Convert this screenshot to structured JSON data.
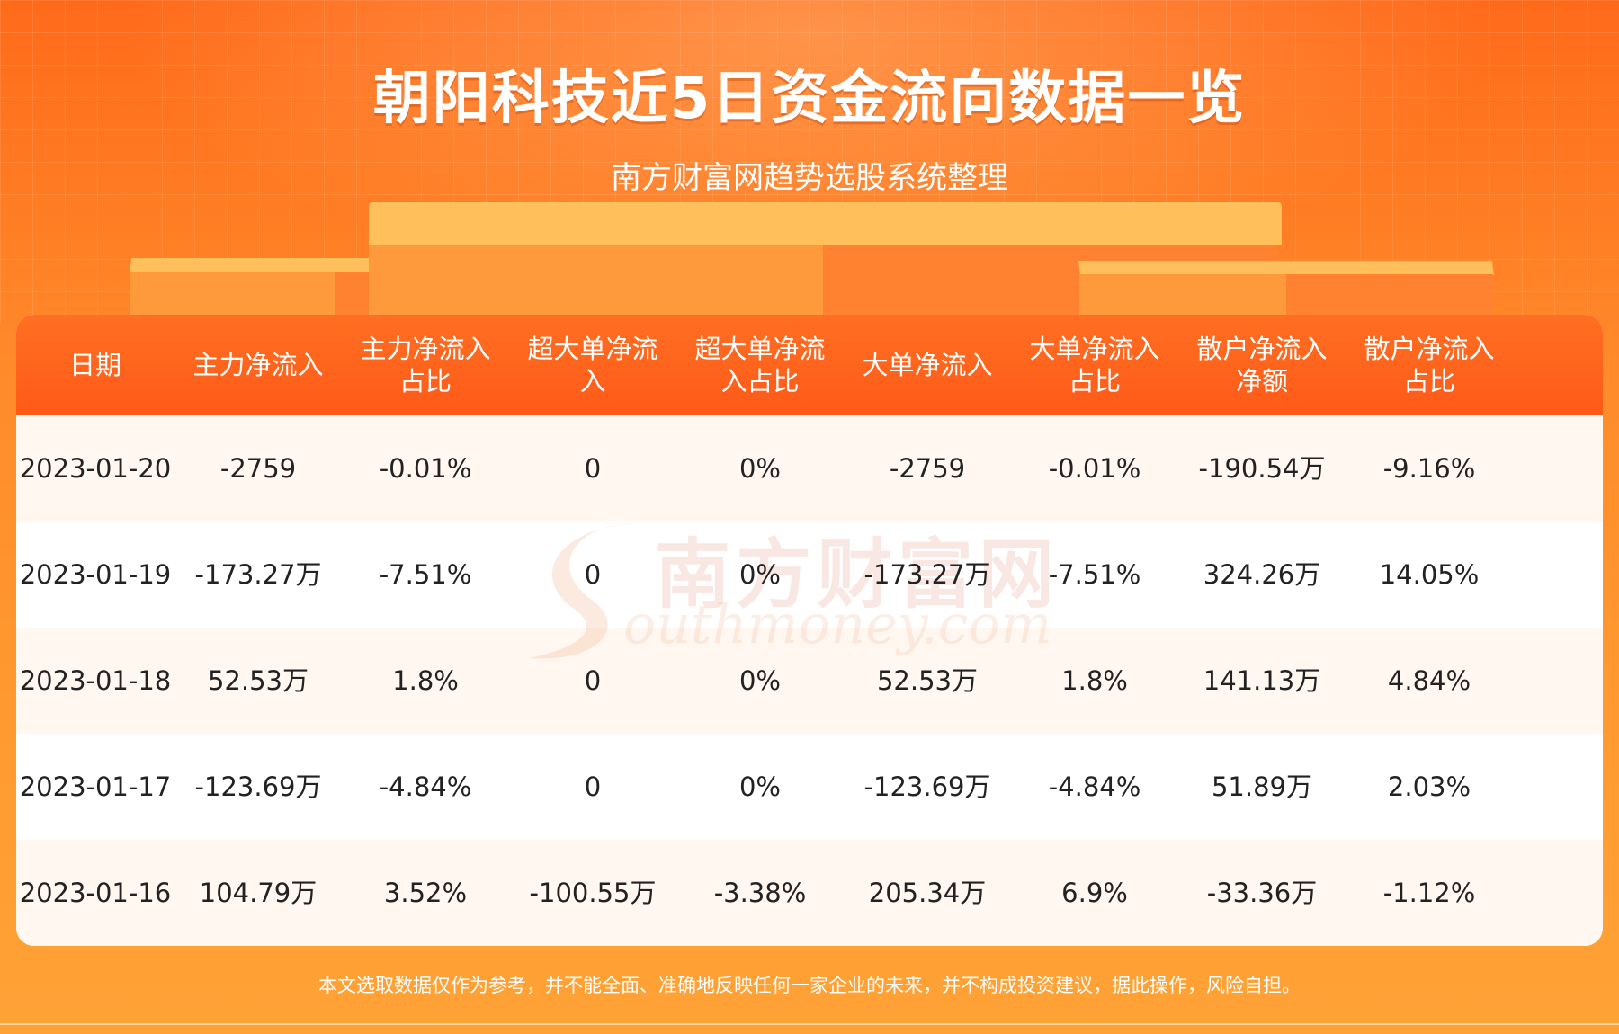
{
  "title": "朝阳科技近5日资金流向数据一览",
  "subtitle": "南方财富网趋势选股系统整理",
  "watermark": {
    "cn": "南方财富网",
    "en": "outhmoney.com"
  },
  "table": {
    "headers": [
      [
        "日期"
      ],
      [
        "主力净流入"
      ],
      [
        "主力净流入",
        "占比"
      ],
      [
        "超大单净流",
        "入"
      ],
      [
        "超大单净流",
        "入占比"
      ],
      [
        "大单净流入"
      ],
      [
        "大单净流入",
        "占比"
      ],
      [
        "散户净流入",
        "净额"
      ],
      [
        "散户净流入",
        "占比"
      ]
    ],
    "rows": [
      [
        "2023-01-20",
        "-2759",
        "-0.01%",
        "0",
        "0%",
        "-2759",
        "-0.01%",
        "-190.54万",
        "-9.16%"
      ],
      [
        "2023-01-19",
        "-173.27万",
        "-7.51%",
        "0",
        "0%",
        "-173.27万",
        "-7.51%",
        "324.26万",
        "14.05%"
      ],
      [
        "2023-01-18",
        "52.53万",
        "1.8%",
        "0",
        "0%",
        "52.53万",
        "1.8%",
        "141.13万",
        "4.84%"
      ],
      [
        "2023-01-17",
        "-123.69万",
        "-4.84%",
        "0",
        "0%",
        "-123.69万",
        "-4.84%",
        "51.89万",
        "2.03%"
      ],
      [
        "2023-01-16",
        "104.79万",
        "3.52%",
        "-100.55万",
        "-3.38%",
        "205.34万",
        "6.9%",
        "-33.36万",
        "-1.12%"
      ]
    ]
  },
  "footer": "本文选取数据仅作为参考，并不能全面、准确地反映任何一家企业的未来，并不构成投资建议，据此操作，风险自担。",
  "colors": {
    "header": "#ff5a18",
    "row_alt": "#fff7f0",
    "background": "#ff8a2a"
  }
}
